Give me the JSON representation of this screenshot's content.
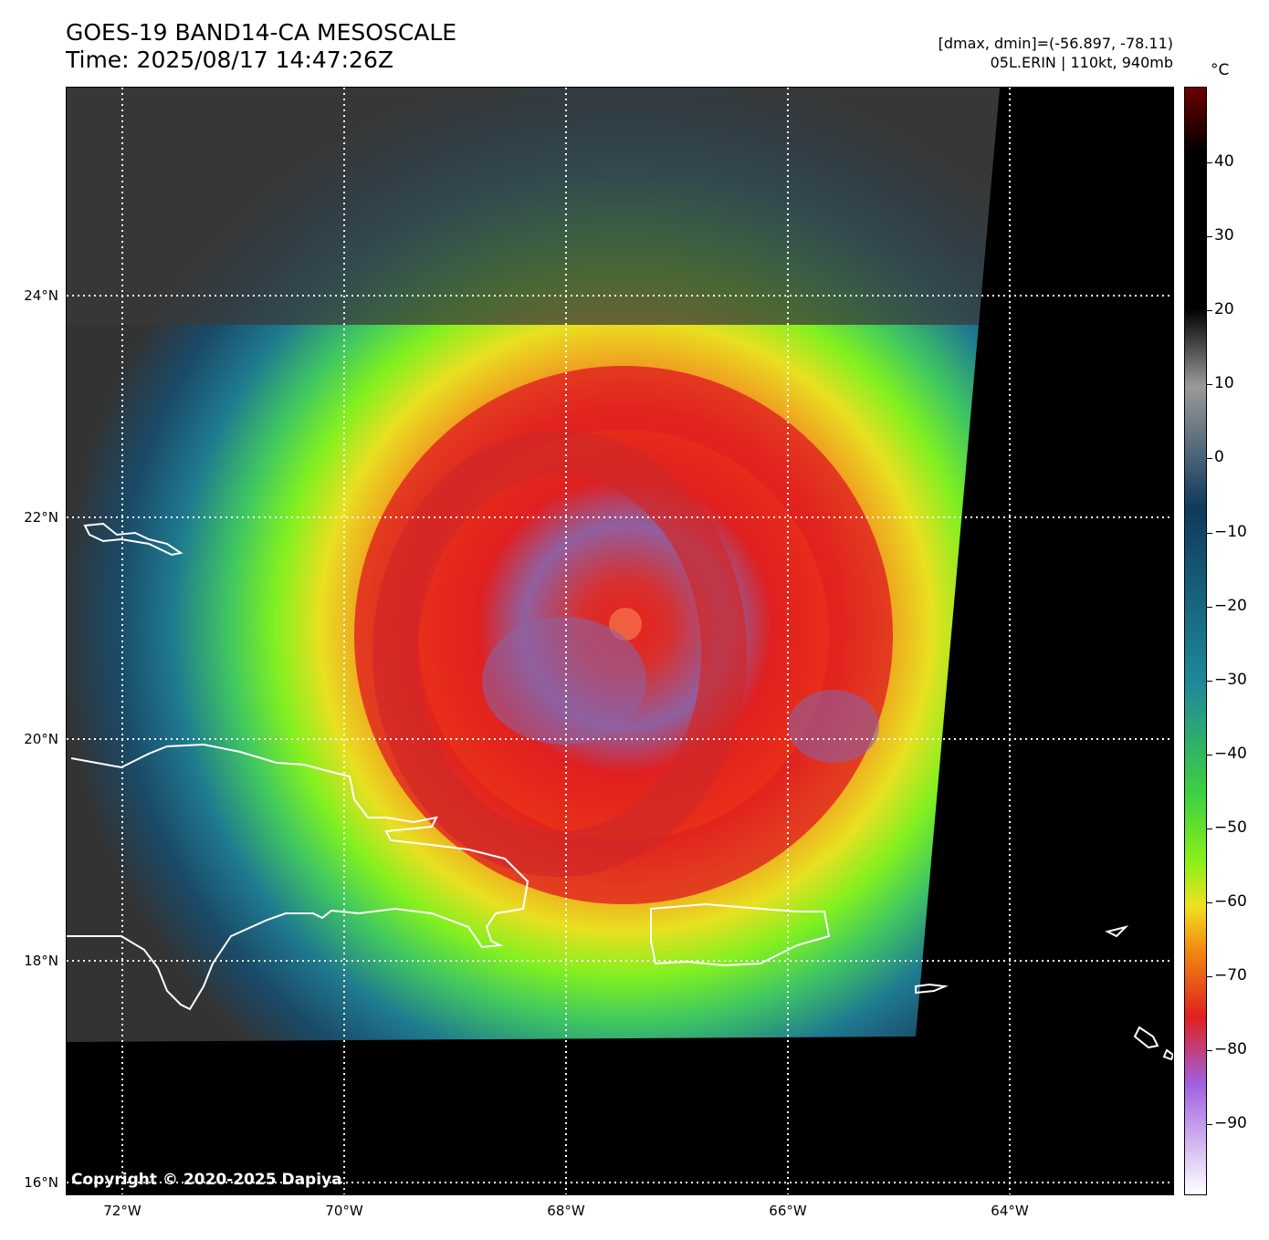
{
  "header": {
    "title": "GOES-19 BAND14-CA MESOSCALE",
    "time": "Time: 2025/08/17 14:47:26Z",
    "range": "[dmax, dmin]=(-56.897, -78.11)",
    "storm": "05L.ERIN | 110kt, 940mb"
  },
  "map": {
    "lat_labels": [
      "24°N",
      "22°N",
      "20°N",
      "18°N",
      "16°N"
    ],
    "lon_labels": [
      "72°W",
      "70°W",
      "68°W",
      "66°W",
      "64°W"
    ],
    "copyright": "Copyright © 2020-2025 Dapiya"
  },
  "colorbar": {
    "unit": "°C",
    "ticks": [
      "40",
      "30",
      "20",
      "10",
      "0",
      "−10",
      "−20",
      "−30",
      "−40",
      "−50",
      "−60",
      "−70",
      "−80",
      "−90"
    ],
    "colors": {
      "warm_top": "#6b0000",
      "black": "#000000",
      "gray": "#9a9a9a",
      "dark_blue": "#0f3a5c",
      "teal": "#1f8a9a",
      "green": "#3fd13f",
      "lime": "#8cf01a",
      "yellow": "#f0e020",
      "orange": "#f08a10",
      "red": "#e02020",
      "purple": "#a060e0",
      "lavender": "#ffffff"
    }
  }
}
